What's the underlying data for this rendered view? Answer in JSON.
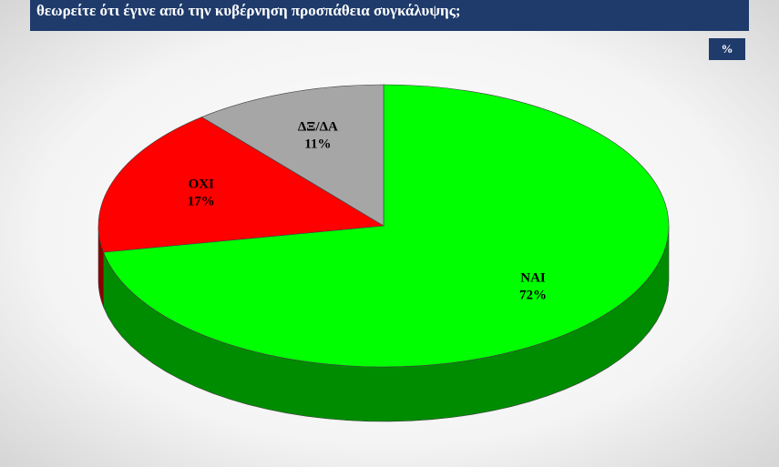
{
  "chart_data": {
    "type": "pie",
    "title": "θεωρείτε ότι έγινε  από την κυβέρνηση προσπάθεια συγκάλυψης;",
    "unit_label": "%",
    "categories": [
      "ΝΑΙ",
      "ΟΧΙ",
      "ΔΞ/ΔΑ"
    ],
    "values": [
      72,
      17,
      11
    ],
    "value_labels": [
      "72%",
      "17%",
      "11%"
    ],
    "colors": [
      "#00ff00",
      "#ff0000",
      "#a6a6a6"
    ]
  }
}
